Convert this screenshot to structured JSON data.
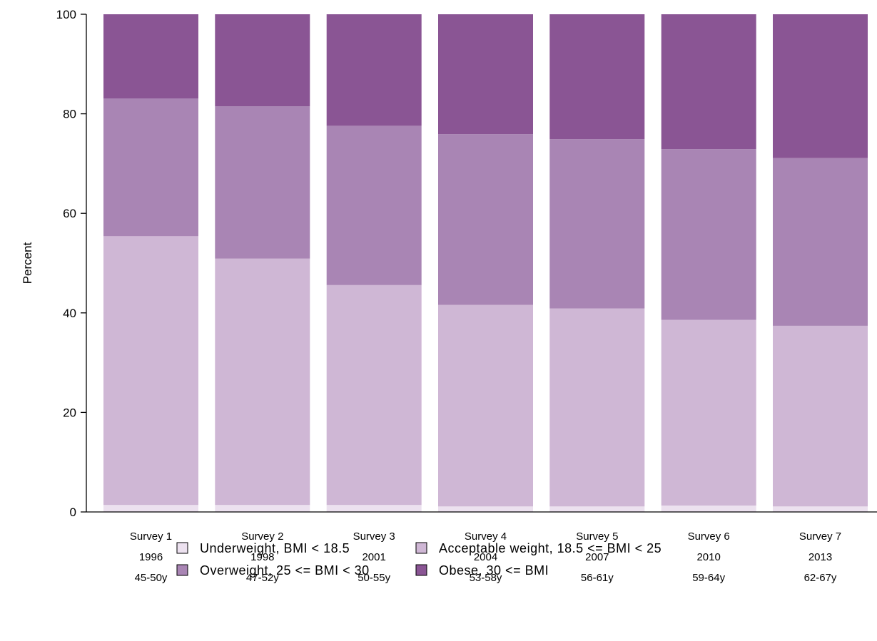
{
  "chart_data": {
    "type": "bar",
    "stacked": true,
    "title": "",
    "xlabel": "",
    "ylabel": "Percent",
    "ylim": [
      0,
      100
    ],
    "yticks": [
      0,
      20,
      40,
      60,
      80,
      100
    ],
    "grid": false,
    "legend_position": "bottom",
    "categories": [
      [
        "Survey 1",
        "1996",
        "45-50y"
      ],
      [
        "Survey 2",
        "1998",
        "47-52y"
      ],
      [
        "Survey 3",
        "2001",
        "50-55y"
      ],
      [
        "Survey 4",
        "2004",
        "53-58y"
      ],
      [
        "Survey 5",
        "2007",
        "56-61y"
      ],
      [
        "Survey 6",
        "2010",
        "59-64y"
      ],
      [
        "Survey 7",
        "2013",
        "62-67y"
      ]
    ],
    "series": [
      {
        "name": "Underweight, BMI < 18.5",
        "color": "#ece1ef",
        "values": [
          1.4,
          1.4,
          1.4,
          1.1,
          1.1,
          1.3,
          1.1
        ]
      },
      {
        "name": "Acceptable weight, 18.5 <= BMI < 25",
        "color": "#cfb7d5",
        "values": [
          54.0,
          49.5,
          44.2,
          40.5,
          39.8,
          37.3,
          36.3
        ]
      },
      {
        "name": "Overweight, 25 <= BMI < 30",
        "color": "#a985b4",
        "values": [
          27.7,
          30.6,
          32.0,
          34.3,
          34.0,
          34.3,
          33.7
        ]
      },
      {
        "name": "Obese, 30 <= BMI",
        "color": "#8a5594",
        "values": [
          16.9,
          18.5,
          22.4,
          24.1,
          25.1,
          27.1,
          28.9
        ]
      }
    ]
  }
}
